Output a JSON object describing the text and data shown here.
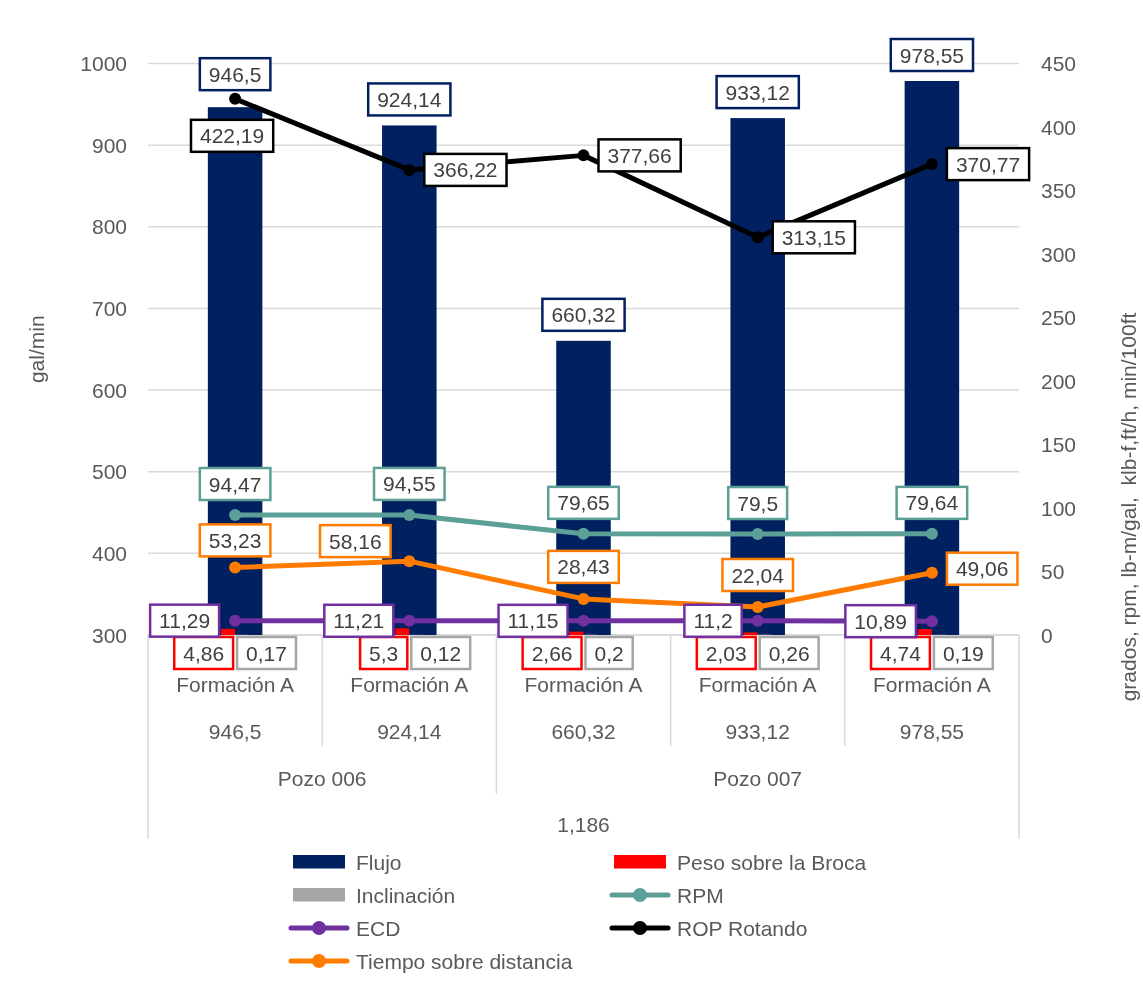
{
  "chart_data": {
    "type": "bar",
    "categories": [
      "Formación A",
      "Formación A",
      "Formación A",
      "Formación A",
      "Formación A"
    ],
    "series": [
      {
        "name": "Flujo",
        "color": "#002060",
        "values": [
          946.5,
          924.14,
          660.32,
          933.12,
          978.55
        ],
        "value_labels": [
          "946,5",
          "924,14",
          "660,32",
          "933,12",
          "978,55"
        ]
      },
      {
        "name": "Peso sobre la Broca",
        "axis": "y2",
        "color": "#ff0000",
        "values": [
          4.86,
          5.3,
          2.66,
          2.03,
          4.74
        ],
        "value_labels": [
          "4,86",
          "5,3",
          "2,66",
          "2,03",
          "4,74"
        ]
      },
      {
        "name": "Inclinación",
        "axis": "y2",
        "color": "#a6a6a6",
        "values": [
          0.17,
          0.12,
          0.2,
          0.26,
          0.19
        ],
        "value_labels": [
          "0,17",
          "0,12",
          "0,2",
          "0,26",
          "0,19"
        ]
      },
      {
        "name": "RPM",
        "type": "line",
        "axis": "y2",
        "color": "#5b9f96",
        "values": [
          94.47,
          94.55,
          79.65,
          79.5,
          79.64
        ],
        "value_labels": [
          "94,47",
          "94,55",
          "79,65",
          "79,5",
          "79,64"
        ]
      },
      {
        "name": "ECD",
        "type": "line",
        "axis": "y2",
        "color": "#7030a0",
        "values": [
          11.29,
          11.21,
          11.15,
          11.2,
          10.89
        ],
        "value_labels": [
          "11,29",
          "11,21",
          "11,15",
          "11,2",
          "10,89"
        ]
      },
      {
        "name": "ROP Rotando",
        "type": "line",
        "axis": "y2",
        "color": "#000000",
        "values": [
          422.19,
          366.22,
          377.66,
          313.15,
          370.77
        ],
        "value_labels": [
          "422,19",
          "366,22",
          "377,66",
          "313,15",
          "370,77"
        ]
      },
      {
        "name": "Tiempo sobre distancia",
        "type": "line",
        "axis": "y2",
        "color": "#ff7c00",
        "values": [
          53.23,
          58.16,
          28.43,
          22.04,
          49.06
        ],
        "value_labels": [
          "53,23",
          "58,16",
          "28,43",
          "22,04",
          "49,06"
        ]
      }
    ],
    "ylabel": "gal/min",
    "y2label": "grados, rpm, lb-m/gal,  klb-f,ft/h, min/100ft",
    "ylim": [
      300,
      1000
    ],
    "yticks": [
      300,
      400,
      500,
      600,
      700,
      800,
      900,
      1000
    ],
    "y2lim": [
      0,
      450
    ],
    "y2ticks": [
      0,
      50,
      100,
      150,
      200,
      250,
      300,
      350,
      400,
      450
    ],
    "grid": "y",
    "legend": "bottom",
    "marker": "circle",
    "annotations": [
      "946,5",
      "924,14",
      "660,32",
      "933,12",
      "978,55",
      "Pozo 006",
      "Pozo 007",
      "1,186"
    ]
  }
}
